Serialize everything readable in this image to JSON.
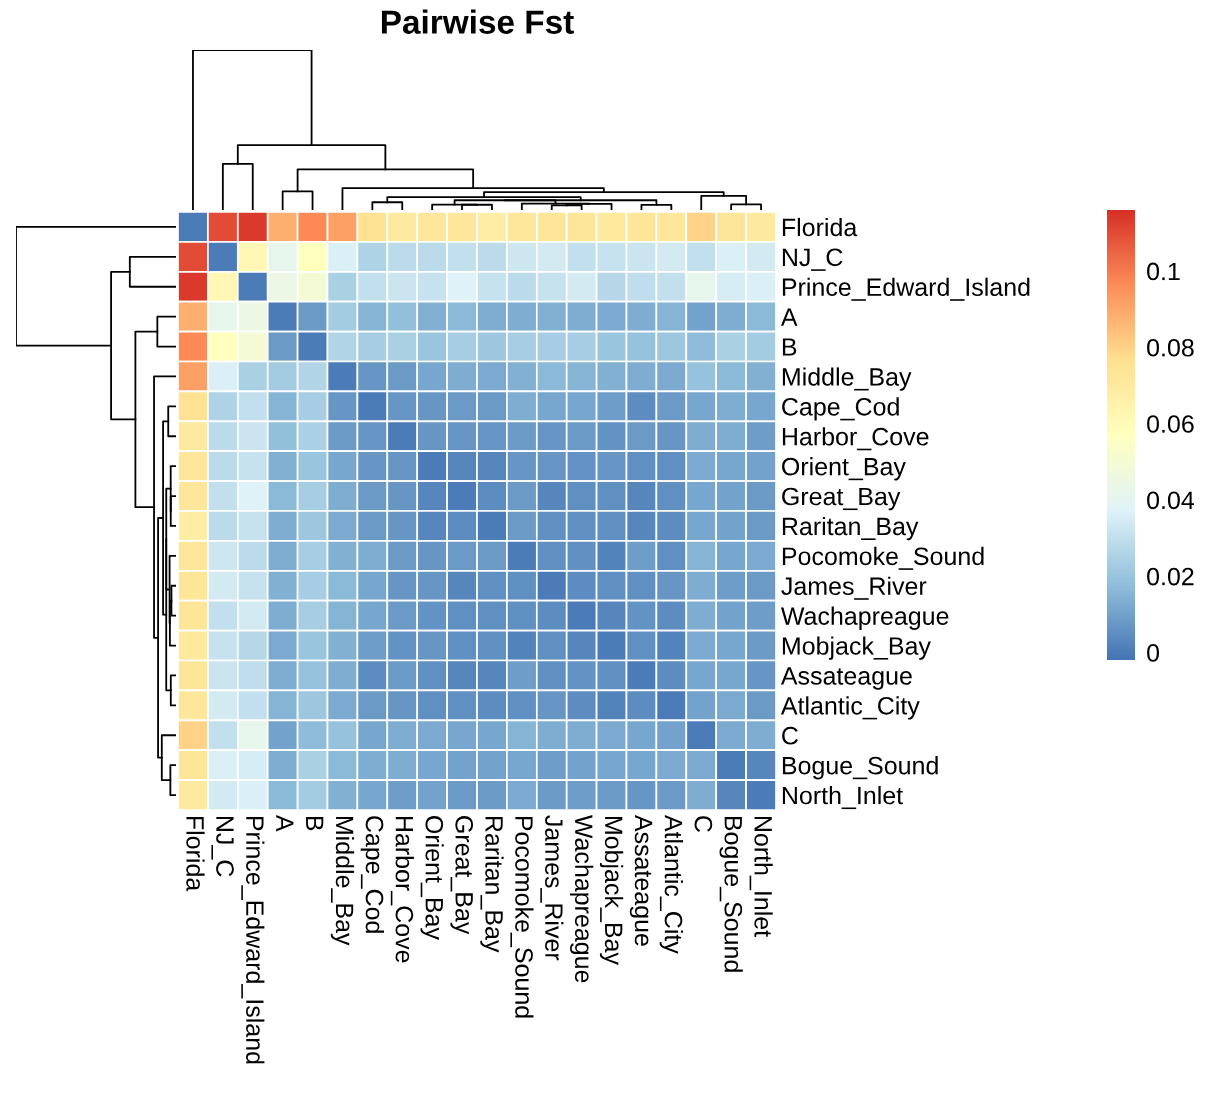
{
  "chart_data": {
    "type": "heatmap",
    "title": "Pairwise Fst",
    "categories": [
      "Florida",
      "NJ_C",
      "Prince_Edward_Island",
      "A",
      "B",
      "Middle_Bay",
      "Cape_Cod",
      "Harbor_Cove",
      "Orient_Bay",
      "Great_Bay",
      "Raritan_Bay",
      "Pocomoke_Sound",
      "James_River",
      "Wachapreague",
      "Mobjack_Bay",
      "Assateague",
      "Atlantic_City",
      "C",
      "Bogue_Sound",
      "North_Inlet"
    ],
    "y_categories": [
      "Florida",
      "NJ_C",
      "Prince_Edward_Island",
      "A",
      "B",
      "Middle_Bay",
      "Cape_Cod",
      "Harbor_Cove",
      "Orient_Bay",
      "Great_Bay",
      "Raritan_Bay",
      "Pocomoke_Sound",
      "James_River",
      "Wachapreague",
      "Mobjack_Bay",
      "Assateague",
      "Atlantic_City",
      "C",
      "Bogue_Sound",
      "North_Inlet"
    ],
    "cells": [
      [
        0,
        0.11,
        0.114,
        0.088,
        0.097,
        0.092,
        0.075,
        0.07,
        0.072,
        0.072,
        0.068,
        0.072,
        0.073,
        0.073,
        0.071,
        0.073,
        0.072,
        0.08,
        0.073,
        0.07
      ],
      [
        0.11,
        0,
        0.062,
        0.042,
        0.057,
        0.036,
        0.025,
        0.028,
        0.028,
        0.03,
        0.028,
        0.033,
        0.034,
        0.03,
        0.031,
        0.032,
        0.034,
        0.03,
        0.036,
        0.034
      ],
      [
        0.114,
        0.062,
        0,
        0.045,
        0.05,
        0.024,
        0.03,
        0.032,
        0.031,
        0.037,
        0.031,
        0.028,
        0.031,
        0.034,
        0.027,
        0.029,
        0.03,
        0.042,
        0.035,
        0.036
      ],
      [
        0.088,
        0.042,
        0.045,
        0,
        0.008,
        0.022,
        0.015,
        0.018,
        0.014,
        0.016,
        0.013,
        0.013,
        0.014,
        0.013,
        0.012,
        0.013,
        0.015,
        0.01,
        0.013,
        0.016
      ],
      [
        0.097,
        0.057,
        0.05,
        0.008,
        0,
        0.026,
        0.023,
        0.024,
        0.02,
        0.023,
        0.021,
        0.023,
        0.023,
        0.023,
        0.02,
        0.019,
        0.021,
        0.017,
        0.024,
        0.022
      ],
      [
        0.092,
        0.036,
        0.024,
        0.022,
        0.026,
        0,
        0.007,
        0.008,
        0.011,
        0.013,
        0.012,
        0.014,
        0.016,
        0.015,
        0.014,
        0.013,
        0.012,
        0.019,
        0.016,
        0.014
      ],
      [
        0.075,
        0.025,
        0.03,
        0.015,
        0.023,
        0.007,
        0,
        0.007,
        0.007,
        0.008,
        0.008,
        0.013,
        0.011,
        0.011,
        0.009,
        0.004,
        0.008,
        0.011,
        0.013,
        0.011
      ],
      [
        0.07,
        0.028,
        0.032,
        0.018,
        0.024,
        0.008,
        0.007,
        0,
        0.007,
        0.007,
        0.007,
        0.008,
        0.007,
        0.008,
        0.006,
        0.008,
        0.007,
        0.013,
        0.013,
        0.009
      ],
      [
        0.072,
        0.028,
        0.031,
        0.014,
        0.02,
        0.011,
        0.007,
        0.007,
        0,
        0.003,
        0.003,
        0.007,
        0.007,
        0.006,
        0.007,
        0.005,
        0.005,
        0.012,
        0.011,
        0.01
      ],
      [
        0.072,
        0.03,
        0.037,
        0.016,
        0.023,
        0.013,
        0.008,
        0.007,
        0.003,
        0,
        0.004,
        0.008,
        0.003,
        0.005,
        0.005,
        0.003,
        0.005,
        0.011,
        0.01,
        0.008
      ],
      [
        0.068,
        0.028,
        0.031,
        0.013,
        0.021,
        0.012,
        0.008,
        0.007,
        0.003,
        0.004,
        0,
        0.008,
        0.005,
        0.005,
        0.005,
        0.003,
        0.004,
        0.011,
        0.01,
        0.008
      ],
      [
        0.072,
        0.033,
        0.028,
        0.013,
        0.023,
        0.014,
        0.013,
        0.008,
        0.007,
        0.008,
        0.008,
        0,
        0.005,
        0.005,
        0.002,
        0.009,
        0.005,
        0.015,
        0.011,
        0.012
      ],
      [
        0.073,
        0.034,
        0.031,
        0.014,
        0.023,
        0.016,
        0.011,
        0.007,
        0.007,
        0.003,
        0.005,
        0.005,
        0,
        0.004,
        0.005,
        0.005,
        0.007,
        0.013,
        0.009,
        0.008
      ],
      [
        0.073,
        0.03,
        0.034,
        0.013,
        0.023,
        0.015,
        0.011,
        0.008,
        0.006,
        0.005,
        0.005,
        0.005,
        0.004,
        0,
        0.003,
        0.006,
        0.004,
        0.013,
        0.01,
        0.009
      ],
      [
        0.071,
        0.031,
        0.027,
        0.012,
        0.02,
        0.014,
        0.009,
        0.006,
        0.007,
        0.005,
        0.005,
        0.002,
        0.005,
        0.003,
        0,
        0.005,
        0.002,
        0.012,
        0.011,
        0.008
      ],
      [
        0.073,
        0.032,
        0.029,
        0.013,
        0.019,
        0.013,
        0.004,
        0.008,
        0.005,
        0.003,
        0.003,
        0.009,
        0.005,
        0.006,
        0.005,
        0,
        0.004,
        0.011,
        0.011,
        0.007
      ],
      [
        0.072,
        0.034,
        0.03,
        0.015,
        0.021,
        0.012,
        0.008,
        0.007,
        0.005,
        0.005,
        0.004,
        0.005,
        0.007,
        0.004,
        0.002,
        0.004,
        0,
        0.01,
        0.012,
        0.008
      ],
      [
        0.08,
        0.03,
        0.042,
        0.01,
        0.017,
        0.019,
        0.011,
        0.013,
        0.012,
        0.011,
        0.011,
        0.015,
        0.013,
        0.013,
        0.012,
        0.011,
        0.01,
        0,
        0.012,
        0.013
      ],
      [
        0.073,
        0.036,
        0.035,
        0.013,
        0.024,
        0.016,
        0.013,
        0.013,
        0.011,
        0.01,
        0.01,
        0.011,
        0.009,
        0.01,
        0.011,
        0.011,
        0.012,
        0.012,
        0,
        0.003
      ],
      [
        0.07,
        0.034,
        0.036,
        0.016,
        0.022,
        0.014,
        0.011,
        0.009,
        0.01,
        0.008,
        0.008,
        0.012,
        0.008,
        0.009,
        0.008,
        0.007,
        0.008,
        0.013,
        0.003,
        0
      ]
    ],
    "clim": [
      -0.002,
      0.116
    ],
    "cticks": [
      0,
      0.02,
      0.04,
      0.06,
      0.08,
      0.1
    ]
  }
}
